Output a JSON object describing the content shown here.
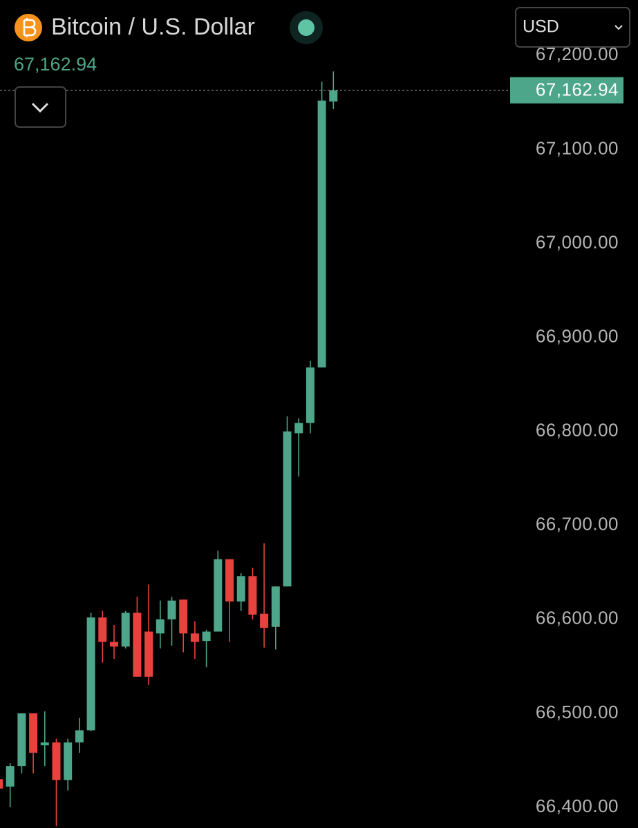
{
  "header": {
    "title": "Bitcoin / U.S. Dollar",
    "currency": "USD"
  },
  "chart_data": {
    "type": "candlestick",
    "up_color": "#4da58a",
    "down_color": "#e8423f",
    "open": [
      66430,
      66422,
      66444,
      66500,
      66466,
      66469,
      66429,
      66469,
      66482,
      66602,
      66576,
      66571,
      66607,
      66587,
      66585,
      66600,
      66621,
      66585,
      66577,
      66587,
      66664,
      66619,
      66646,
      66606,
      66592,
      66635,
      66798,
      66809,
      66868,
      67151
    ],
    "high": [
      66440,
      66447,
      66500,
      66500,
      66502,
      66473,
      66473,
      66495,
      66607,
      66609,
      66594,
      66609,
      66624,
      66637,
      66620,
      66624,
      66621,
      66598,
      66589,
      66673,
      66664,
      66649,
      66655,
      66681,
      66635,
      66816,
      66814,
      66875,
      67172,
      67183
    ],
    "low": [
      66410,
      66400,
      66436,
      66436,
      66444,
      66380,
      66418,
      66458,
      66481,
      66554,
      66558,
      66569,
      66539,
      66530,
      66569,
      66572,
      66565,
      66558,
      66549,
      66587,
      66576,
      66609,
      66600,
      66570,
      66568,
      66635,
      66752,
      66798,
      66868,
      67143
    ],
    "close": [
      66420,
      66444,
      66500,
      66458,
      66469,
      66429,
      66469,
      66482,
      66602,
      66576,
      66571,
      66607,
      66539,
      66539,
      66600,
      66620,
      66585,
      66576,
      66587,
      66664,
      66619,
      66646,
      66605,
      66591,
      66635,
      66800,
      66809,
      66868,
      67152,
      67162.94
    ],
    "last_price": {
      "value": 67162.94,
      "label": "67,162.94"
    },
    "ylim": [
      66378,
      67259
    ],
    "yticks": [
      {
        "value": 66400,
        "label": "66,400.00"
      },
      {
        "value": 66500,
        "label": "66,500.00"
      },
      {
        "value": 66600,
        "label": "66,600.00"
      },
      {
        "value": 66700,
        "label": "66,700.00"
      },
      {
        "value": 66800,
        "label": "66,800.00"
      },
      {
        "value": 66900,
        "label": "66,900.00"
      },
      {
        "value": 67000,
        "label": "67,000.00"
      },
      {
        "value": 67100,
        "label": "67,100.00"
      },
      {
        "value": 67200,
        "label": "67,200.00"
      }
    ]
  }
}
